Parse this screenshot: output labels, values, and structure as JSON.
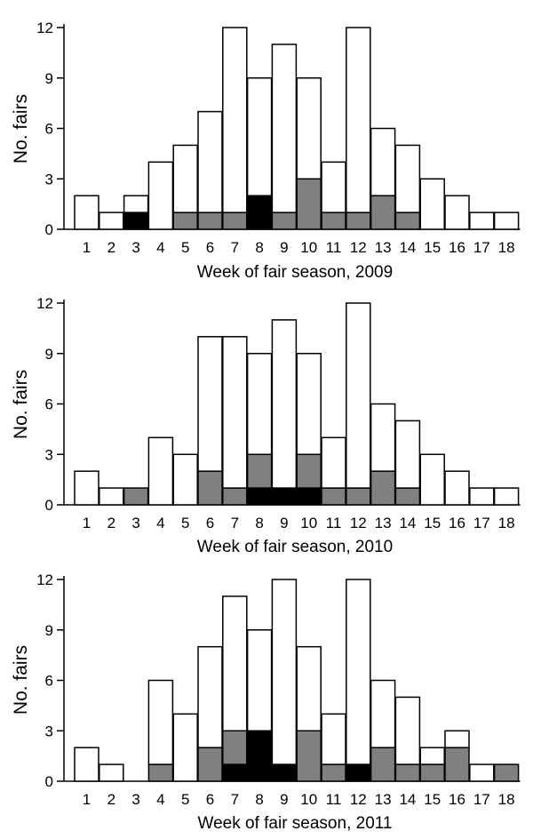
{
  "chart_data": [
    {
      "type": "bar",
      "stacked": true,
      "categories": [
        "1",
        "2",
        "3",
        "4",
        "5",
        "6",
        "7",
        "8",
        "9",
        "10",
        "11",
        "12",
        "13",
        "14",
        "15",
        "16",
        "17",
        "18"
      ],
      "xlabel": "Week of fair season, 2009",
      "ylabel": "No. fairs",
      "ylim": [
        0,
        12
      ],
      "yticks": [
        "0",
        "3",
        "6",
        "9",
        "12"
      ],
      "totals": [
        2,
        1,
        2,
        4,
        5,
        7,
        12,
        9,
        11,
        9,
        4,
        12,
        6,
        5,
        3,
        2,
        1,
        1
      ],
      "gray": [
        0,
        0,
        0,
        0,
        1,
        1,
        1,
        0,
        1,
        3,
        1,
        1,
        2,
        1,
        0,
        0,
        0,
        0
      ],
      "black": [
        0,
        0,
        1,
        0,
        0,
        0,
        0,
        2,
        0,
        0,
        0,
        0,
        0,
        0,
        0,
        0,
        0,
        0
      ]
    },
    {
      "type": "bar",
      "stacked": true,
      "categories": [
        "1",
        "2",
        "3",
        "4",
        "5",
        "6",
        "7",
        "8",
        "9",
        "10",
        "11",
        "12",
        "13",
        "14",
        "15",
        "16",
        "17",
        "18"
      ],
      "xlabel": "Week of fair season, 2010",
      "ylabel": "No. fairs",
      "ylim": [
        0,
        12
      ],
      "yticks": [
        "0",
        "3",
        "6",
        "9",
        "12"
      ],
      "totals": [
        2,
        1,
        1,
        4,
        3,
        10,
        10,
        9,
        11,
        9,
        4,
        12,
        6,
        5,
        3,
        2,
        1,
        1
      ],
      "gray": [
        0,
        0,
        1,
        0,
        0,
        2,
        1,
        2,
        0,
        2,
        1,
        1,
        2,
        1,
        0,
        0,
        0,
        0
      ],
      "black": [
        0,
        0,
        0,
        0,
        0,
        0,
        0,
        1,
        1,
        1,
        0,
        0,
        0,
        0,
        0,
        0,
        0,
        0
      ]
    },
    {
      "type": "bar",
      "stacked": true,
      "categories": [
        "1",
        "2",
        "3",
        "4",
        "5",
        "6",
        "7",
        "8",
        "9",
        "10",
        "11",
        "12",
        "13",
        "14",
        "15",
        "16",
        "17",
        "18"
      ],
      "xlabel": "Week of fair season, 2011",
      "ylabel": "No. fairs",
      "ylim": [
        0,
        12
      ],
      "yticks": [
        "0",
        "3",
        "6",
        "9",
        "12"
      ],
      "totals": [
        2,
        1,
        0,
        6,
        4,
        8,
        11,
        9,
        12,
        8,
        4,
        12,
        6,
        5,
        2,
        3,
        1,
        1
      ],
      "gray": [
        0,
        0,
        0,
        1,
        0,
        2,
        2,
        0,
        0,
        3,
        1,
        0,
        2,
        1,
        1,
        2,
        0,
        1
      ],
      "black": [
        0,
        0,
        0,
        0,
        0,
        0,
        1,
        3,
        1,
        0,
        0,
        1,
        0,
        0,
        0,
        0,
        0,
        0
      ]
    }
  ],
  "colors": {
    "white": "#ffffff",
    "gray": "#808080",
    "black": "#000000",
    "stroke": "#000000"
  }
}
